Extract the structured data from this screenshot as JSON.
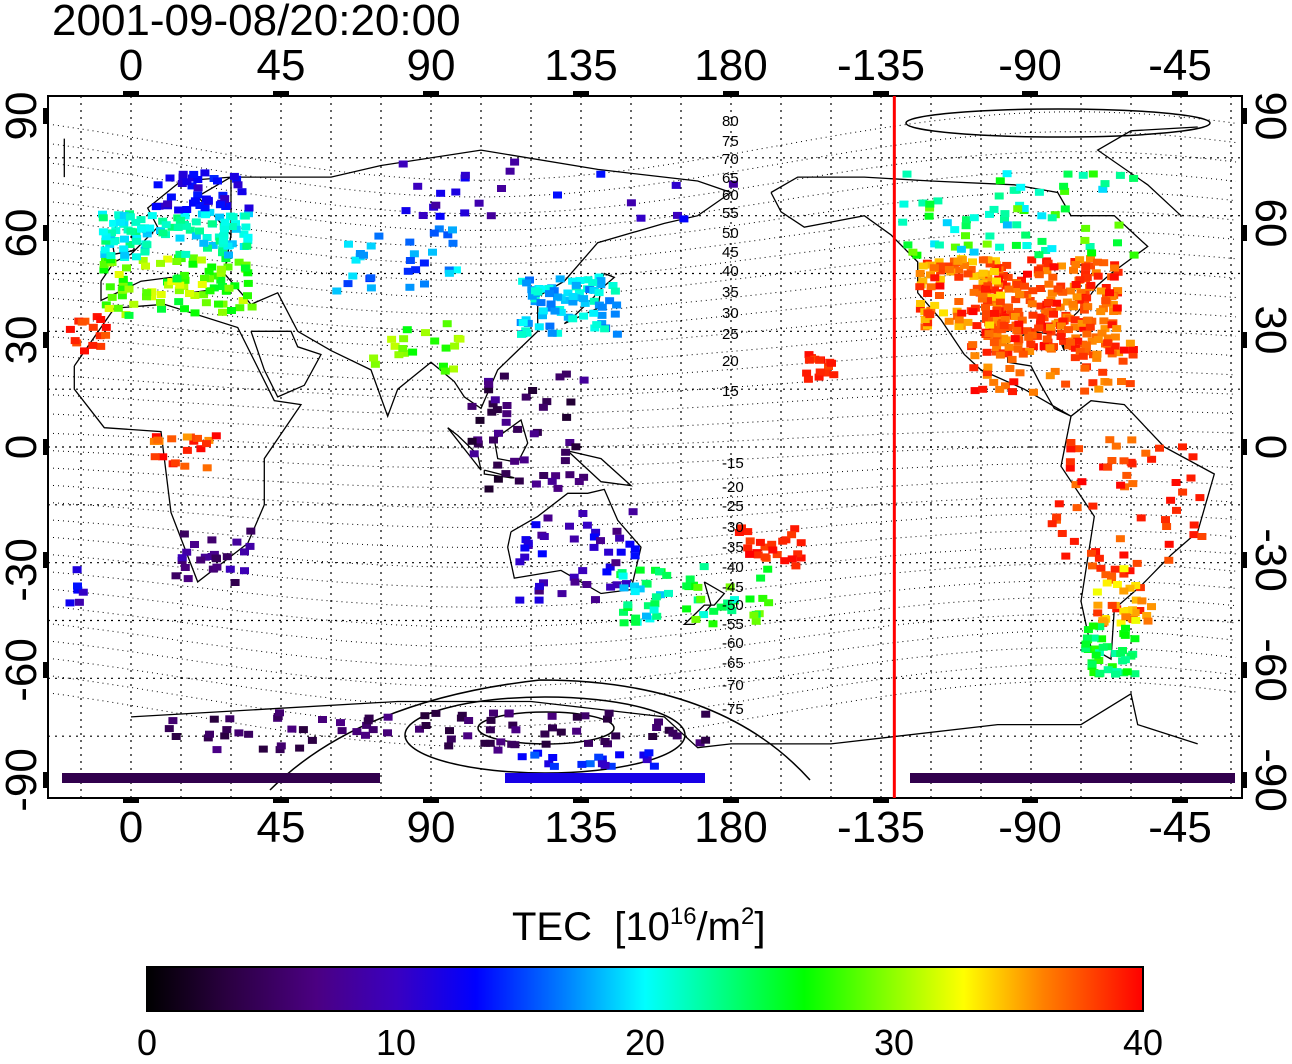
{
  "title": "2001-09-08/20:20:00",
  "map": {
    "x_tick_labels": [
      "0",
      "45",
      "90",
      "135",
      "180",
      "-135",
      "-90",
      "-45"
    ],
    "y_tick_labels": [
      "90",
      "60",
      "30",
      "0",
      "-30",
      "-60",
      "-90"
    ],
    "contour_labels_north": [
      "80",
      "75",
      "70",
      "65",
      "60",
      "55",
      "50",
      "45",
      "40",
      "35",
      "30",
      "25",
      "20",
      "15"
    ],
    "contour_labels_south": [
      "-15",
      "-20",
      "-25",
      "-30",
      "-35",
      "-40",
      "-45",
      "-50",
      "-55",
      "-60",
      "-65",
      "-70",
      "-75"
    ],
    "terminator_longitude": -131,
    "terminator_color": "#ff0000"
  },
  "colorbar": {
    "title": "TEC",
    "unit_base": "[10",
    "unit_exp1": "16",
    "unit_mid": "/m",
    "unit_exp2": "2",
    "unit_end": "]",
    "min": 0,
    "max": 40,
    "tick_labels": [
      "0",
      "10",
      "20",
      "30",
      "40"
    ],
    "colors": [
      "#000000",
      "#2a0040",
      "#4b0082",
      "#3a00c0",
      "#0000ff",
      "#0080ff",
      "#00ffff",
      "#00ff80",
      "#00ff00",
      "#80ff00",
      "#ffff00",
      "#ff8000",
      "#ff0000"
    ]
  }
}
